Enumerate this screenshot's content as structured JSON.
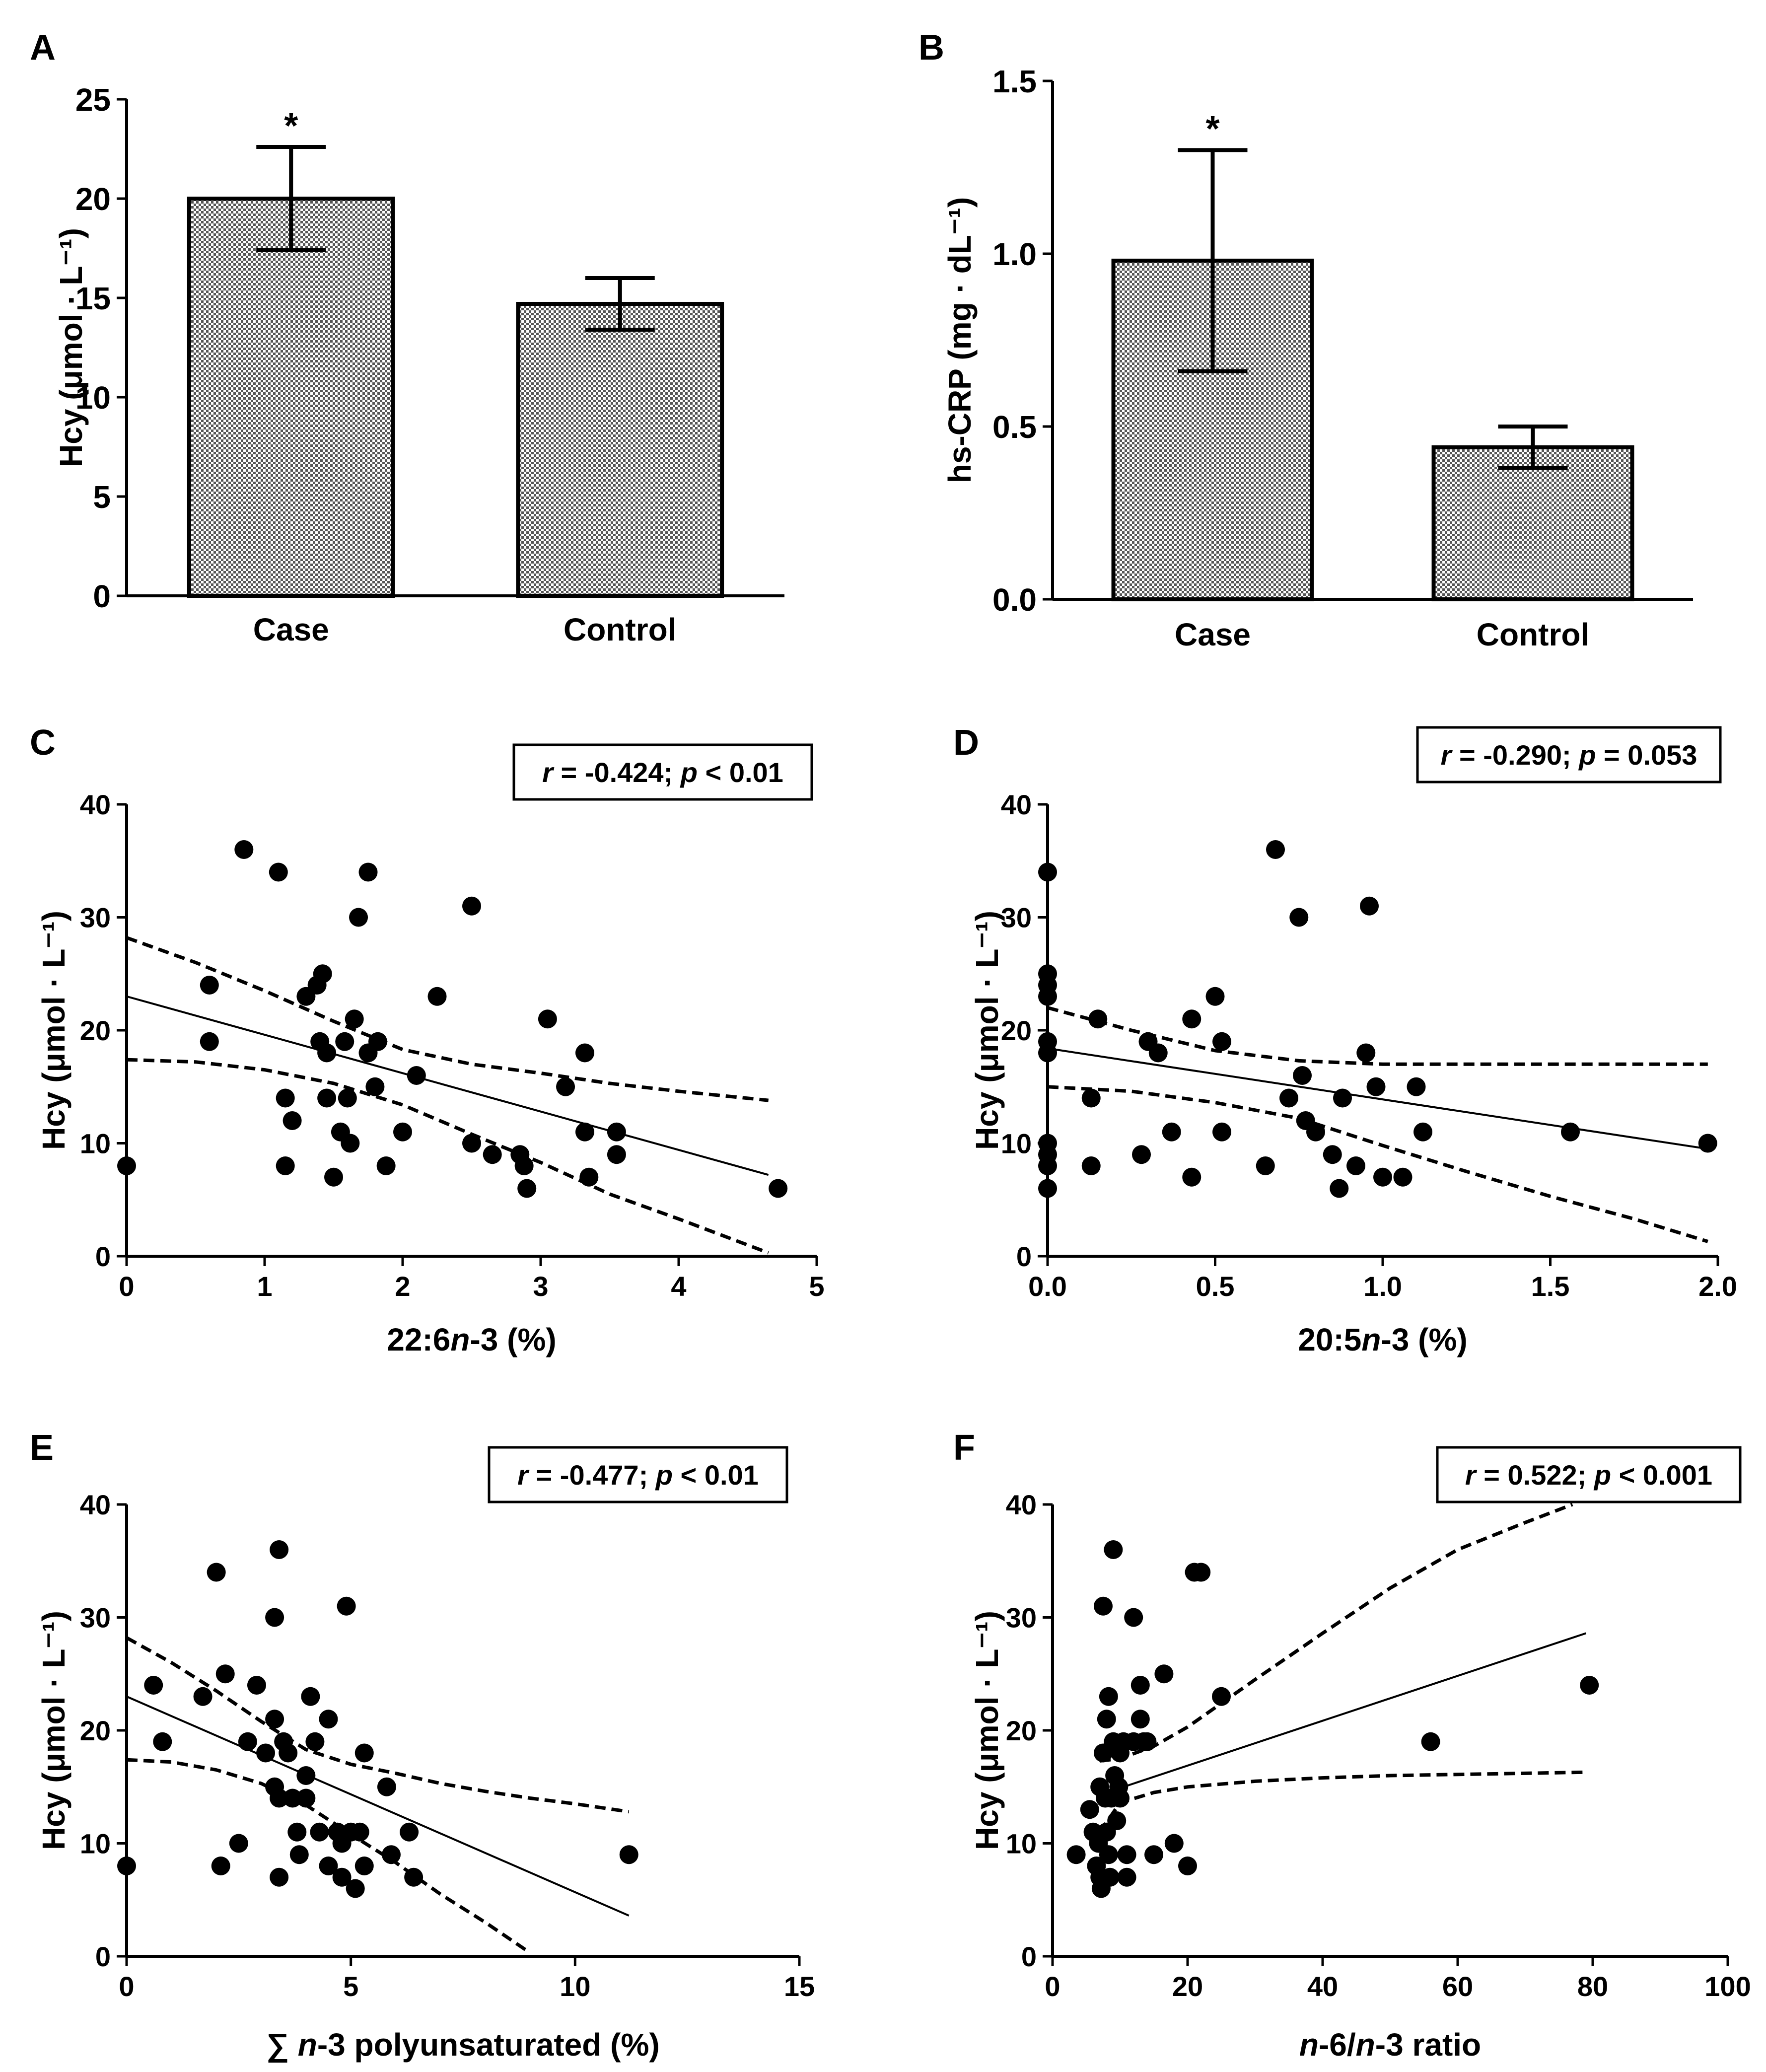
{
  "chart_data": [
    {
      "id": "A",
      "panel_label": "A",
      "type": "bar",
      "categories": [
        "Case",
        "Control"
      ],
      "values": [
        20.0,
        14.7
      ],
      "errors": [
        2.6,
        1.3
      ],
      "significance": [
        "*",
        ""
      ],
      "ylabel": "Hcy (μmol · L⁻¹)",
      "ylim": [
        0,
        25
      ],
      "yticks": [
        0,
        5,
        10,
        15,
        20,
        25
      ],
      "ytick_labels": [
        "0",
        "5",
        "10",
        "15",
        "20",
        "25"
      ]
    },
    {
      "id": "B",
      "panel_label": "B",
      "type": "bar",
      "categories": [
        "Case",
        "Control"
      ],
      "values": [
        0.98,
        0.44
      ],
      "errors": [
        0.32,
        0.06
      ],
      "significance": [
        "*",
        ""
      ],
      "ylabel": "hs-CRP (mg · dL⁻¹)",
      "ylim": [
        0,
        1.5
      ],
      "yticks": [
        0,
        0.5,
        1.0,
        1.5
      ],
      "ytick_labels": [
        "0.0",
        "0.5",
        "1.0",
        "1.5"
      ]
    },
    {
      "id": "C",
      "panel_label": "C",
      "type": "scatter",
      "annotation": {
        "r": "r",
        "r_text": " = -0.424; ",
        "p": "p",
        "p_text": " < 0.01"
      },
      "xlabel_parts": [
        "22:6",
        "n",
        "-3 (%)"
      ],
      "ylabel": "Hcy (μmol · L⁻¹)",
      "xlim": [
        0,
        5
      ],
      "ylim": [
        0,
        40
      ],
      "xticks": [
        0,
        1,
        2,
        3,
        4,
        5
      ],
      "xtick_labels": [
        "0",
        "1",
        "2",
        "3",
        "4",
        "5"
      ],
      "yticks": [
        0,
        10,
        20,
        30,
        40
      ],
      "ytick_labels": [
        "0",
        "10",
        "20",
        "30",
        "40"
      ],
      "points": [
        [
          0,
          8
        ],
        [
          0.6,
          24
        ],
        [
          0.6,
          19
        ],
        [
          0.85,
          36
        ],
        [
          1.1,
          34
        ],
        [
          1.15,
          14
        ],
        [
          1.15,
          8
        ],
        [
          1.2,
          12
        ],
        [
          1.3,
          23
        ],
        [
          1.38,
          24
        ],
        [
          1.42,
          25
        ],
        [
          1.4,
          19
        ],
        [
          1.45,
          18
        ],
        [
          1.45,
          14
        ],
        [
          1.5,
          7
        ],
        [
          1.55,
          11
        ],
        [
          1.58,
          19
        ],
        [
          1.6,
          14
        ],
        [
          1.62,
          10
        ],
        [
          1.65,
          21
        ],
        [
          1.68,
          30
        ],
        [
          1.75,
          34
        ],
        [
          1.75,
          18
        ],
        [
          1.8,
          15
        ],
        [
          1.82,
          19
        ],
        [
          1.88,
          8
        ],
        [
          2.0,
          11
        ],
        [
          2.1,
          16
        ],
        [
          2.25,
          23
        ],
        [
          2.5,
          31
        ],
        [
          2.5,
          10
        ],
        [
          2.65,
          9
        ],
        [
          2.85,
          9
        ],
        [
          2.88,
          8
        ],
        [
          2.9,
          6
        ],
        [
          3.05,
          21
        ],
        [
          3.18,
          15
        ],
        [
          3.32,
          18
        ],
        [
          3.32,
          11
        ],
        [
          3.35,
          7
        ],
        [
          3.55,
          11
        ],
        [
          3.55,
          9
        ],
        [
          4.72,
          6
        ]
      ],
      "fit": {
        "x": [
          0,
          4.65
        ],
        "y": [
          23.0,
          7.2
        ]
      },
      "ci_upper": {
        "x": [
          0,
          0.5,
          1.0,
          1.5,
          2.0,
          2.5,
          3.0,
          3.5,
          4.0,
          4.65
        ],
        "y": [
          28.2,
          26.0,
          23.5,
          20.8,
          18.3,
          17.0,
          16.2,
          15.3,
          14.6,
          13.8
        ]
      },
      "ci_lower": {
        "x": [
          0,
          0.5,
          1.0,
          1.5,
          2.0,
          2.5,
          3.0,
          3.5,
          4.0,
          4.65
        ],
        "y": [
          17.4,
          17.2,
          16.5,
          15.3,
          13.4,
          10.8,
          8.3,
          5.5,
          3.3,
          0.3
        ]
      }
    },
    {
      "id": "D",
      "panel_label": "D",
      "type": "scatter",
      "annotation": {
        "r": "r",
        "r_text": " = -0.290; ",
        "p": "p",
        "p_text": " = 0.053"
      },
      "xlabel_parts": [
        "20:5",
        "n",
        "-3 (%)"
      ],
      "ylabel": "Hcy (μmol · L⁻¹)",
      "xlim": [
        0,
        2.0
      ],
      "ylim": [
        0,
        40
      ],
      "xticks": [
        0,
        0.5,
        1.0,
        1.5,
        2.0
      ],
      "xtick_labels": [
        "0.0",
        "0.5",
        "1.0",
        "1.5",
        "2.0"
      ],
      "yticks": [
        0,
        10,
        20,
        30,
        40
      ],
      "ytick_labels": [
        "0",
        "10",
        "20",
        "30",
        "40"
      ],
      "points": [
        [
          0,
          34
        ],
        [
          0,
          25
        ],
        [
          0,
          24
        ],
        [
          0,
          23
        ],
        [
          0,
          19
        ],
        [
          0,
          18
        ],
        [
          0,
          10
        ],
        [
          0,
          9
        ],
        [
          0,
          8
        ],
        [
          0,
          6
        ],
        [
          0.13,
          14
        ],
        [
          0.13,
          8
        ],
        [
          0.15,
          21
        ],
        [
          0.28,
          9
        ],
        [
          0.3,
          19
        ],
        [
          0.33,
          18
        ],
        [
          0.37,
          11
        ],
        [
          0.43,
          21
        ],
        [
          0.43,
          7
        ],
        [
          0.5,
          23
        ],
        [
          0.52,
          19
        ],
        [
          0.52,
          11
        ],
        [
          0.65,
          8
        ],
        [
          0.68,
          36
        ],
        [
          0.72,
          14
        ],
        [
          0.75,
          30
        ],
        [
          0.76,
          16
        ],
        [
          0.77,
          12
        ],
        [
          0.8,
          11
        ],
        [
          0.85,
          9
        ],
        [
          0.87,
          6
        ],
        [
          0.88,
          14
        ],
        [
          0.92,
          8
        ],
        [
          0.95,
          18
        ],
        [
          0.96,
          31
        ],
        [
          0.98,
          15
        ],
        [
          1.0,
          7
        ],
        [
          1.06,
          7
        ],
        [
          1.1,
          15
        ],
        [
          1.12,
          11
        ],
        [
          1.56,
          11
        ],
        [
          1.97,
          10
        ]
      ],
      "fit": {
        "x": [
          0,
          1.97
        ],
        "y": [
          18.4,
          9.5
        ]
      },
      "ci_upper": {
        "x": [
          0,
          0.25,
          0.5,
          0.75,
          1.0,
          1.25,
          1.5,
          1.75,
          1.97
        ],
        "y": [
          22.0,
          20.0,
          18.2,
          17.3,
          17.0,
          17.0,
          17.0,
          17.0,
          17.0
        ]
      },
      "ci_lower": {
        "x": [
          0,
          0.25,
          0.5,
          0.75,
          1.0,
          1.25,
          1.5,
          1.75,
          1.97
        ],
        "y": [
          15.0,
          14.6,
          13.6,
          12.2,
          9.8,
          7.5,
          5.3,
          3.3,
          1.3
        ]
      }
    },
    {
      "id": "E",
      "panel_label": "E",
      "type": "scatter",
      "annotation": {
        "r": "r",
        "r_text": " = -0.477; ",
        "p": "p",
        "p_text": " < 0.01"
      },
      "xlabel_parts": [
        "∑ ",
        "n",
        "-3 polyunsaturated (%)"
      ],
      "ylabel": "Hcy (μmol · L⁻¹)",
      "xlim": [
        0,
        15
      ],
      "ylim": [
        0,
        40
      ],
      "xticks": [
        0,
        5,
        10,
        15
      ],
      "xtick_labels": [
        "0",
        "5",
        "10",
        "15"
      ],
      "yticks": [
        0,
        10,
        20,
        30,
        40
      ],
      "ytick_labels": [
        "0",
        "10",
        "20",
        "30",
        "40"
      ],
      "points": [
        [
          0,
          8
        ],
        [
          0.6,
          24
        ],
        [
          0.8,
          19
        ],
        [
          1.7,
          23
        ],
        [
          2.0,
          34
        ],
        [
          2.1,
          8
        ],
        [
          2.2,
          25
        ],
        [
          2.5,
          10
        ],
        [
          2.7,
          19
        ],
        [
          2.9,
          24
        ],
        [
          3.1,
          18
        ],
        [
          3.3,
          30
        ],
        [
          3.3,
          21
        ],
        [
          3.3,
          15
        ],
        [
          3.4,
          36
        ],
        [
          3.4,
          14
        ],
        [
          3.4,
          7
        ],
        [
          3.5,
          19
        ],
        [
          3.6,
          18
        ],
        [
          3.7,
          14
        ],
        [
          3.8,
          11
        ],
        [
          3.85,
          9
        ],
        [
          4.0,
          16
        ],
        [
          4.0,
          14
        ],
        [
          4.1,
          23
        ],
        [
          4.2,
          19
        ],
        [
          4.3,
          11
        ],
        [
          4.5,
          21
        ],
        [
          4.5,
          8
        ],
        [
          4.7,
          11
        ],
        [
          4.8,
          10
        ],
        [
          4.8,
          7
        ],
        [
          4.9,
          31
        ],
        [
          5.0,
          11
        ],
        [
          5.1,
          6
        ],
        [
          5.2,
          11
        ],
        [
          5.3,
          8
        ],
        [
          5.3,
          18
        ],
        [
          5.8,
          15
        ],
        [
          5.9,
          9
        ],
        [
          6.3,
          11
        ],
        [
          6.4,
          7
        ],
        [
          11.2,
          9
        ]
      ],
      "fit": {
        "x": [
          0,
          11.2
        ],
        "y": [
          23.0,
          3.6
        ]
      },
      "ci_upper": {
        "x": [
          0,
          1,
          2,
          3,
          4,
          5,
          6,
          7,
          8,
          9,
          10,
          11.2
        ],
        "y": [
          28.2,
          26.0,
          23.5,
          20.8,
          18.3,
          17.0,
          16.2,
          15.3,
          14.6,
          14.0,
          13.5,
          12.8
        ]
      },
      "ci_lower": {
        "x": [
          0,
          1,
          2,
          3,
          4,
          5,
          6,
          7,
          8,
          9.0
        ],
        "y": [
          17.4,
          17.2,
          16.5,
          15.3,
          13.4,
          10.8,
          8.3,
          5.5,
          3.0,
          0.3
        ]
      }
    },
    {
      "id": "F",
      "panel_label": "F",
      "type": "scatter",
      "annotation": {
        "r": "r",
        "r_text": " = 0.522; ",
        "p": "p",
        "p_text": " < 0.001"
      },
      "xlabel_parts": [
        "n",
        "-6/",
        "n",
        "-3 ratio"
      ],
      "ylabel": "Hcy (μmol · L⁻¹)",
      "xlim": [
        0,
        100
      ],
      "ylim": [
        0,
        40
      ],
      "xticks": [
        0,
        20,
        40,
        60,
        80,
        100
      ],
      "xtick_labels": [
        "0",
        "20",
        "40",
        "60",
        "80",
        "100"
      ],
      "yticks": [
        0,
        10,
        20,
        30,
        40
      ],
      "ytick_labels": [
        "0",
        "10",
        "20",
        "30",
        "40"
      ],
      "points": [
        [
          3.5,
          9
        ],
        [
          5.5,
          13
        ],
        [
          6,
          11
        ],
        [
          6.5,
          8
        ],
        [
          6.8,
          10
        ],
        [
          7,
          7
        ],
        [
          7,
          15
        ],
        [
          7.2,
          6
        ],
        [
          7.5,
          18
        ],
        [
          7.5,
          31
        ],
        [
          7.8,
          14
        ],
        [
          8,
          21
        ],
        [
          8,
          11
        ],
        [
          8.3,
          9
        ],
        [
          8.3,
          23
        ],
        [
          8.5,
          7
        ],
        [
          8.7,
          14
        ],
        [
          9,
          19
        ],
        [
          9,
          36
        ],
        [
          9.2,
          16
        ],
        [
          9.5,
          12
        ],
        [
          9.8,
          15
        ],
        [
          10,
          14
        ],
        [
          10,
          18
        ],
        [
          10.5,
          19
        ],
        [
          11,
          9
        ],
        [
          11,
          7
        ],
        [
          12,
          19
        ],
        [
          12,
          30
        ],
        [
          13,
          21
        ],
        [
          13,
          24
        ],
        [
          13.5,
          19
        ],
        [
          14,
          19
        ],
        [
          15,
          9
        ],
        [
          16.5,
          25
        ],
        [
          18,
          10
        ],
        [
          20,
          8
        ],
        [
          21,
          34
        ],
        [
          22,
          34
        ],
        [
          25,
          23
        ],
        [
          56,
          19
        ],
        [
          79.5,
          24
        ]
      ],
      "fit": {
        "x": [
          7,
          79
        ],
        "y": [
          14.3,
          28.6
        ]
      },
      "ci_upper": {
        "x": [
          7,
          10,
          15,
          20,
          30,
          40,
          50,
          60,
          70,
          77
        ],
        "y": [
          17.3,
          17.5,
          18.6,
          20.3,
          24.5,
          28.6,
          32.6,
          36.0,
          38.4,
          40.0
        ]
      },
      "ci_lower": {
        "x": [
          7,
          10,
          15,
          20,
          30,
          40,
          50,
          60,
          70,
          79
        ],
        "y": [
          11.0,
          13.6,
          14.5,
          15.0,
          15.5,
          15.8,
          16.0,
          16.1,
          16.2,
          16.3
        ]
      }
    }
  ]
}
